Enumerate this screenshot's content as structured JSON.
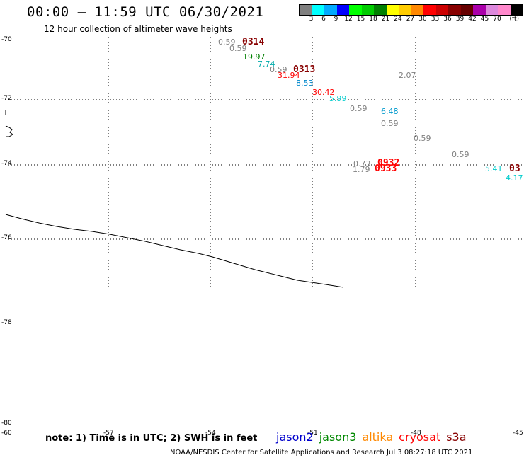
{
  "header": {
    "title": "00:00 – 11:59 UTC 06/30/2021",
    "subtitle": "12 hour collection of altimeter wave heights"
  },
  "legend": {
    "unit": "(ft)",
    "colors": [
      "#808080",
      "#00ffff",
      "#00aaff",
      "#0000ff",
      "#00ff00",
      "#00cc00",
      "#008000",
      "#ffff00",
      "#ffcc00",
      "#ff8800",
      "#ff0000",
      "#cc0000",
      "#880000",
      "#660000",
      "#aa00aa",
      "#dd88dd",
      "#ff88cc",
      "#000000"
    ],
    "labels": [
      "3",
      "6",
      "9",
      "12",
      "15",
      "18",
      "21",
      "24",
      "27",
      "30",
      "33",
      "36",
      "39",
      "42",
      "45",
      "70"
    ]
  },
  "axes": {
    "lat_labels": [
      "-70",
      "-72",
      "-74",
      "-76",
      "-78",
      "-80"
    ],
    "lon_labels": [
      "-60",
      "-57",
      "-54",
      "-51",
      "-48",
      "-45"
    ]
  },
  "observations": [
    {
      "text": "0.59",
      "color": "#808080"
    },
    {
      "text": "0.59",
      "color": "#808080"
    },
    {
      "text": "19.97",
      "color": "#008000"
    },
    {
      "text": "7.74",
      "color": "#00aaaa"
    },
    {
      "text": "0.59",
      "color": "#808080"
    },
    {
      "text": "31.94",
      "color": "#ff0000"
    },
    {
      "text": "8.53",
      "color": "#0088cc"
    },
    {
      "text": "30.42",
      "color": "#ff0000"
    },
    {
      "text": "5.99",
      "color": "#00cccc"
    },
    {
      "text": "0.59",
      "color": "#808080"
    },
    {
      "text": "6.48",
      "color": "#0099cc"
    },
    {
      "text": "0.59",
      "color": "#808080"
    },
    {
      "text": "2.07",
      "color": "#808080"
    },
    {
      "text": "0.59",
      "color": "#808080"
    },
    {
      "text": "0.59",
      "color": "#808080"
    },
    {
      "text": "0.73",
      "color": "#808080"
    },
    {
      "text": "1.79",
      "color": "#808080"
    },
    {
      "text": "5.41",
      "color": "#00cccc"
    },
    {
      "text": "4.17",
      "color": "#00cccc"
    }
  ],
  "passes": [
    {
      "text": "0314",
      "color": "#880000"
    },
    {
      "text": "0313",
      "color": "#880000"
    },
    {
      "text": "0932",
      "color": "#ff0000"
    },
    {
      "text": "0933",
      "color": "#ff0000"
    },
    {
      "text": "03",
      "color": "#880000"
    }
  ],
  "note": "note: 1) Time is in UTC; 2) SWH is in feet",
  "satellites": [
    {
      "name": "jason2",
      "color": "#0000cc"
    },
    {
      "name": "jason3",
      "color": "#008800"
    },
    {
      "name": "altika",
      "color": "#ff8800"
    },
    {
      "name": "cryosat",
      "color": "#ff0000"
    },
    {
      "name": "s3a",
      "color": "#880000"
    }
  ],
  "footer": "NOAA/NESDIS Center for Satellite Applications and Research    Jul  3 08:27:18 UTC 2021"
}
